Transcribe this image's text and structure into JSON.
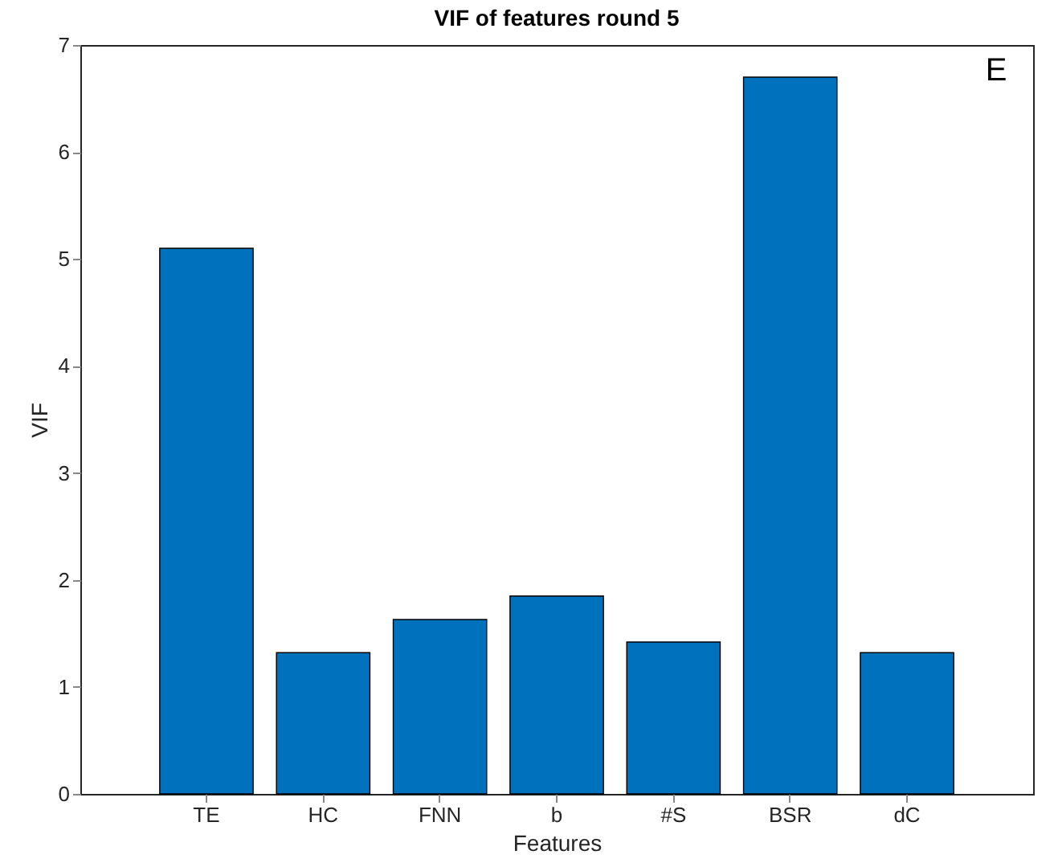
{
  "chart_data": {
    "type": "bar",
    "title": "VIF of features round 5",
    "xlabel": "Features",
    "ylabel": "VIF",
    "categories": [
      "TE",
      "HC",
      "FNN",
      "b",
      "#S",
      "BSR",
      "dC"
    ],
    "values": [
      5.1,
      1.32,
      1.63,
      1.85,
      1.42,
      6.7,
      1.32
    ],
    "color": "#0072bd",
    "ylim": [
      0,
      7
    ],
    "yticks": [
      0,
      1,
      2,
      3,
      4,
      5,
      6,
      7
    ],
    "grid": false,
    "annotations": [
      "E"
    ]
  }
}
